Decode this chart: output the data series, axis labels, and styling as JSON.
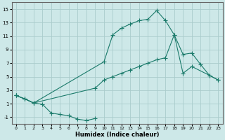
{
  "xlabel": "Humidex (Indice chaleur)",
  "background_color": "#cde8e8",
  "grid_color": "#aacccc",
  "line_color": "#1a7a6a",
  "xlim": [
    -0.5,
    23.5
  ],
  "ylim": [
    -2.0,
    16.0
  ],
  "xticks": [
    0,
    1,
    2,
    3,
    4,
    5,
    6,
    7,
    8,
    9,
    10,
    11,
    12,
    13,
    14,
    15,
    16,
    17,
    18,
    19,
    20,
    21,
    22,
    23
  ],
  "yticks": [
    -1,
    1,
    3,
    5,
    7,
    9,
    11,
    13,
    15
  ],
  "line1_x": [
    0,
    1,
    2,
    3,
    4,
    5,
    6,
    7,
    8,
    9
  ],
  "line1_y": [
    2.2,
    1.7,
    1.1,
    0.9,
    -0.4,
    -0.6,
    -0.8,
    -1.3,
    -1.5,
    -1.2
  ],
  "line2_x": [
    0,
    1,
    2,
    10,
    11,
    12,
    13,
    14,
    15,
    16,
    17,
    18,
    19,
    20,
    22,
    23
  ],
  "line2_y": [
    2.2,
    1.7,
    1.1,
    7.2,
    11.2,
    12.2,
    12.8,
    13.3,
    13.5,
    14.8,
    13.3,
    11.2,
    5.5,
    6.5,
    5.2,
    4.5
  ],
  "line3_x": [
    0,
    1,
    2,
    9,
    10,
    11,
    12,
    13,
    14,
    15,
    16,
    17,
    18,
    19,
    20,
    21,
    22,
    23
  ],
  "line3_y": [
    2.2,
    1.7,
    1.1,
    3.3,
    4.5,
    5.0,
    5.5,
    6.0,
    6.5,
    7.0,
    7.5,
    7.8,
    11.2,
    8.3,
    8.5,
    6.8,
    5.2,
    4.5
  ],
  "markersize": 2.5
}
